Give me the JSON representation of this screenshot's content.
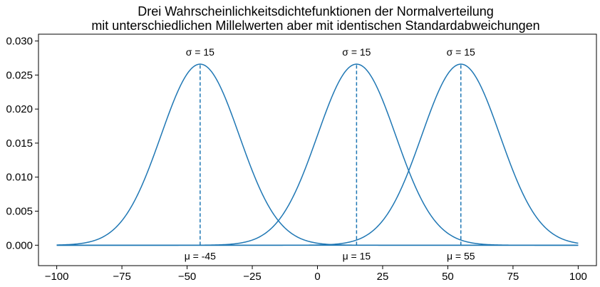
{
  "chart_data": {
    "type": "line",
    "title": "Drei Wahrscheinlichkeitsdichtefunktionen der Normalverteilung",
    "subtitle": "mit unterschiedlichen Millelwerten aber mit identischen Standardabweichungen",
    "xlabel": "",
    "ylabel": "",
    "xlim": [
      -107,
      107
    ],
    "ylim": [
      -0.003,
      0.031
    ],
    "x_ticks": [
      -100,
      -75,
      -50,
      -25,
      0,
      25,
      50,
      75,
      100
    ],
    "x_tick_labels": [
      "−100",
      "−75",
      "−50",
      "−25",
      "0",
      "25",
      "50",
      "75",
      "100"
    ],
    "y_ticks": [
      0.0,
      0.005,
      0.01,
      0.015,
      0.02,
      0.025,
      0.03
    ],
    "y_tick_labels": [
      "0.000",
      "0.005",
      "0.010",
      "0.015",
      "0.020",
      "0.025",
      "0.030"
    ],
    "x_range": [
      -100,
      100
    ],
    "baseline": 0,
    "grid": false,
    "line_color": "#1f77b4",
    "series": [
      {
        "distribution": "normal",
        "mean": -45,
        "sd": 15,
        "peak": 0.0266,
        "mu_label": "μ = -45",
        "sigma_label": "σ = 15"
      },
      {
        "distribution": "normal",
        "mean": 15,
        "sd": 15,
        "peak": 0.0266,
        "mu_label": "μ = 15",
        "sigma_label": "σ = 15"
      },
      {
        "distribution": "normal",
        "mean": 55,
        "sd": 15,
        "peak": 0.0266,
        "mu_label": "μ = 55",
        "sigma_label": "σ = 15"
      }
    ]
  }
}
